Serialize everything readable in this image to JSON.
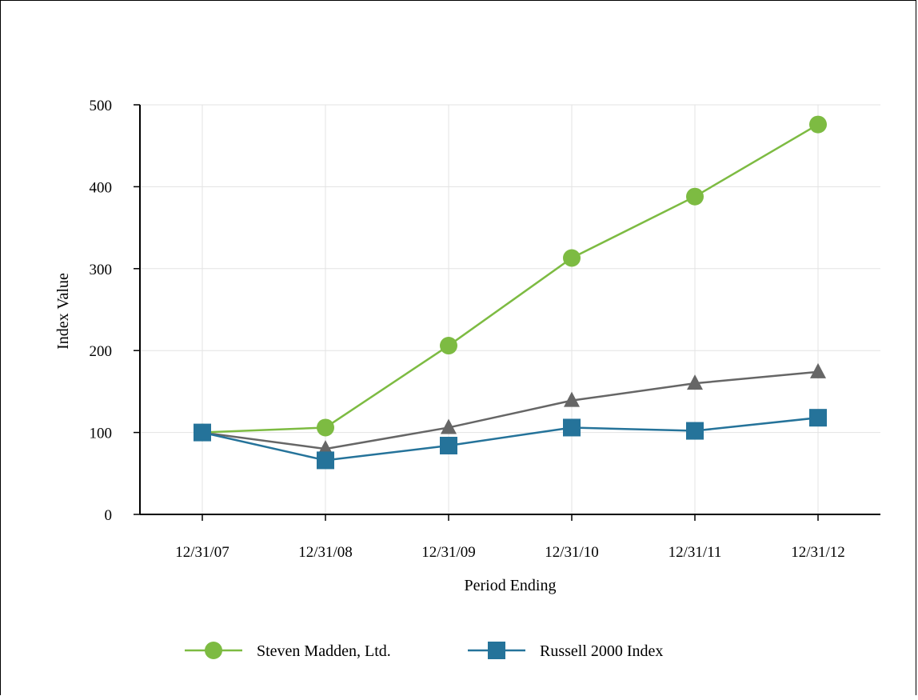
{
  "chart_data": {
    "type": "line",
    "title": "",
    "xlabel": "Period Ending",
    "ylabel": "Index Value",
    "ylim": [
      0,
      500
    ],
    "yticks": [
      0,
      100,
      200,
      300,
      400,
      500
    ],
    "categories": [
      "12/31/07",
      "12/31/08",
      "12/31/09",
      "12/31/10",
      "12/31/11",
      "12/31/12"
    ],
    "grid": true,
    "legend_position": "bottom",
    "series": [
      {
        "name": "Steven Madden, Ltd.",
        "marker": "circle",
        "color": "#7dbb42",
        "values": [
          100,
          106,
          206,
          313,
          388,
          476
        ],
        "in_legend": true
      },
      {
        "name": "",
        "marker": "triangle",
        "color": "#666666",
        "values": [
          100,
          80,
          106,
          139,
          160,
          174
        ],
        "in_legend": false
      },
      {
        "name": "Russell 2000 Index",
        "marker": "square",
        "color": "#25739a",
        "values": [
          100,
          66,
          84,
          106,
          102,
          118
        ],
        "in_legend": true
      }
    ]
  }
}
